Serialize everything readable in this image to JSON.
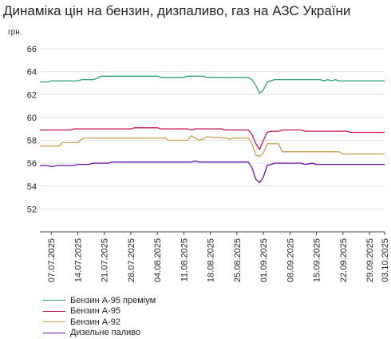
{
  "chart_data": {
    "type": "line",
    "title": "Динаміка цін на бензин, дизпаливо, газ на АЗС України",
    "ylabel": "грн.",
    "xlabel": "",
    "ylim": [
      50,
      66
    ],
    "yticks": [
      52,
      54,
      56,
      58,
      60,
      62,
      64,
      66
    ],
    "x_tick_labels": [
      "07.07.2025",
      "14.07.2025",
      "21.07.2025",
      "28.07.2025",
      "04.08.2025",
      "11.08.2025",
      "18.08.2025",
      "25.08.2025",
      "01.09.2025",
      "08.09.2025",
      "15.09.2025",
      "22.09.2025",
      "29.09.2025",
      "03.10.2025"
    ],
    "x_tick_days": [
      3,
      10,
      17,
      24,
      31,
      38,
      45,
      52,
      59,
      66,
      73,
      80,
      87,
      91
    ],
    "xlim": [
      0,
      91
    ],
    "legend_position": "bottom",
    "grid": "horizontal",
    "series": [
      {
        "name": "Бензин А-95 преміум",
        "color": "#2ca07d",
        "points": [
          [
            0,
            63.1
          ],
          [
            2,
            63.1
          ],
          [
            3,
            63.2
          ],
          [
            10,
            63.2
          ],
          [
            11,
            63.3
          ],
          [
            14,
            63.3
          ],
          [
            15,
            63.4
          ],
          [
            16,
            63.6
          ],
          [
            31,
            63.6
          ],
          [
            32,
            63.5
          ],
          [
            38,
            63.5
          ],
          [
            39,
            63.6
          ],
          [
            43,
            63.6
          ],
          [
            44,
            63.5
          ],
          [
            55,
            63.5
          ],
          [
            56,
            63.3
          ],
          [
            57,
            62.8
          ],
          [
            58,
            62.1
          ],
          [
            59,
            62.4
          ],
          [
            60,
            63.1
          ],
          [
            61,
            63.2
          ],
          [
            62,
            63.3
          ],
          [
            74,
            63.3
          ],
          [
            75,
            63.2
          ],
          [
            76,
            63.3
          ],
          [
            77,
            63.2
          ],
          [
            78,
            63.3
          ],
          [
            79,
            63.2
          ],
          [
            90,
            63.2
          ],
          [
            91,
            63.2
          ]
        ]
      },
      {
        "name": "Бензин А-95",
        "color": "#c8145a",
        "points": [
          [
            0,
            58.9
          ],
          [
            8,
            58.9
          ],
          [
            9,
            59.0
          ],
          [
            24,
            59.0
          ],
          [
            25,
            59.1
          ],
          [
            31,
            59.1
          ],
          [
            32,
            59.0
          ],
          [
            38,
            59.0
          ],
          [
            39,
            59.0
          ],
          [
            40,
            58.9
          ],
          [
            41,
            59.0
          ],
          [
            48,
            59.0
          ],
          [
            49,
            58.9
          ],
          [
            55,
            58.9
          ],
          [
            56,
            58.5
          ],
          [
            57,
            57.7
          ],
          [
            58,
            57.2
          ],
          [
            59,
            58.0
          ],
          [
            60,
            58.7
          ],
          [
            61,
            58.8
          ],
          [
            63,
            58.8
          ],
          [
            64,
            58.9
          ],
          [
            69,
            58.9
          ],
          [
            70,
            58.8
          ],
          [
            76,
            58.8
          ],
          [
            77,
            58.8
          ],
          [
            81,
            58.8
          ],
          [
            82,
            58.7
          ],
          [
            91,
            58.7
          ]
        ]
      },
      {
        "name": "Бензин А-92",
        "color": "#c8a050",
        "points": [
          [
            0,
            57.5
          ],
          [
            5,
            57.5
          ],
          [
            6,
            57.8
          ],
          [
            10,
            57.8
          ],
          [
            11,
            58.1
          ],
          [
            12,
            58.2
          ],
          [
            33,
            58.2
          ],
          [
            34,
            58.0
          ],
          [
            38,
            58.0
          ],
          [
            39,
            58.0
          ],
          [
            40,
            58.4
          ],
          [
            41,
            58.2
          ],
          [
            42,
            58.0
          ],
          [
            43,
            58.1
          ],
          [
            44,
            58.3
          ],
          [
            49,
            58.2
          ],
          [
            50,
            58.1
          ],
          [
            51,
            58.2
          ],
          [
            55,
            58.2
          ],
          [
            56,
            57.7
          ],
          [
            57,
            56.7
          ],
          [
            58,
            56.6
          ],
          [
            59,
            56.9
          ],
          [
            60,
            57.7
          ],
          [
            63,
            57.7
          ],
          [
            64,
            57.0
          ],
          [
            79,
            57.0
          ],
          [
            80,
            56.8
          ],
          [
            91,
            56.8
          ]
        ]
      },
      {
        "name": "Дизельне паливо",
        "color": "#6a10a8",
        "points": [
          [
            0,
            55.8
          ],
          [
            2,
            55.8
          ],
          [
            3,
            55.7
          ],
          [
            5,
            55.8
          ],
          [
            9,
            55.8
          ],
          [
            10,
            55.9
          ],
          [
            13,
            55.9
          ],
          [
            14,
            56.0
          ],
          [
            18,
            56.0
          ],
          [
            19,
            56.1
          ],
          [
            40,
            56.1
          ],
          [
            41,
            56.2
          ],
          [
            42,
            56.1
          ],
          [
            55,
            56.1
          ],
          [
            56,
            55.6
          ],
          [
            57,
            54.6
          ],
          [
            58,
            54.3
          ],
          [
            59,
            54.8
          ],
          [
            60,
            55.8
          ],
          [
            61,
            55.9
          ],
          [
            62,
            56.0
          ],
          [
            69,
            56.0
          ],
          [
            70,
            55.9
          ],
          [
            72,
            56.0
          ],
          [
            73,
            55.9
          ],
          [
            81,
            55.9
          ],
          [
            82,
            55.9
          ],
          [
            91,
            55.9
          ]
        ]
      }
    ]
  }
}
